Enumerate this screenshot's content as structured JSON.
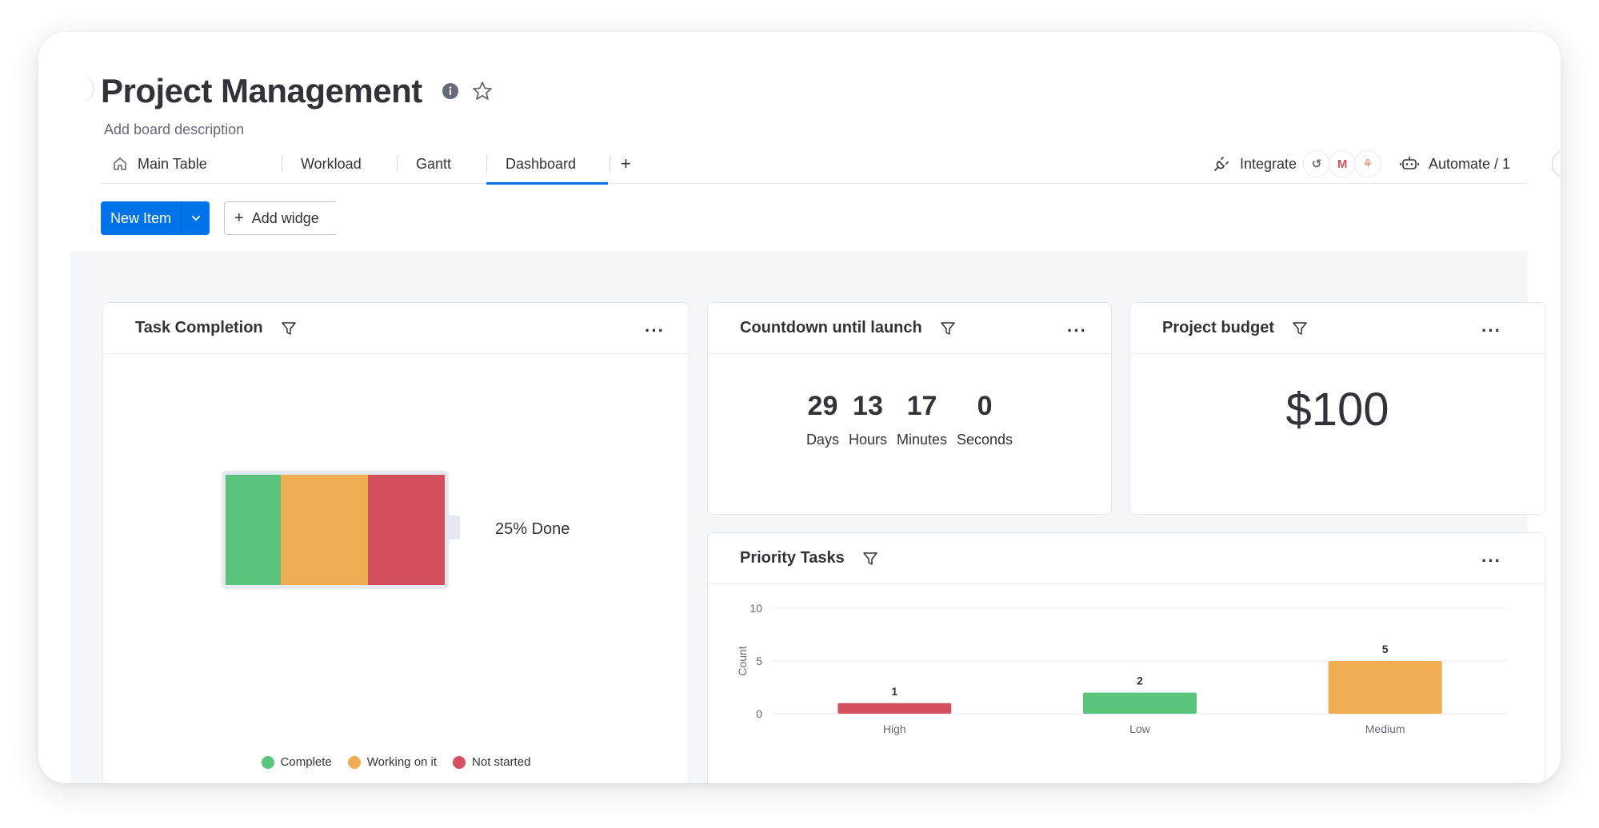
{
  "board": {
    "title": "Project Management",
    "description": "Add board description"
  },
  "tabs": [
    {
      "label": "Main Table",
      "icon": "home-icon"
    },
    {
      "label": "Workload"
    },
    {
      "label": "Gantt"
    },
    {
      "label": "Dashboard",
      "active": true
    },
    {
      "label": "+"
    }
  ],
  "toolbar": {
    "integrate_label": "Integrate",
    "integrations": [
      "webhook-icon",
      "gmail-icon",
      "hubspot-icon"
    ],
    "automate_label": "Automate / 1",
    "new_item_label": "New Item",
    "add_widget_label": "Add widge"
  },
  "widgets": {
    "task_completion": {
      "title": "Task Completion",
      "done_label": "25% Done",
      "segments": [
        {
          "name": "Complete",
          "fraction": 0.25,
          "color": "#5ac47d"
        },
        {
          "name": "Working on it",
          "fraction": 0.4,
          "color": "#f0ad52"
        },
        {
          "name": "Not started",
          "fraction": 0.35,
          "color": "#d5505e"
        }
      ],
      "legend": [
        {
          "label": "Complete",
          "color": "#5ac47d"
        },
        {
          "label": "Working on it",
          "color": "#f0ad52"
        },
        {
          "label": "Not started",
          "color": "#d5505e"
        }
      ]
    },
    "countdown": {
      "title": "Countdown until launch",
      "units": [
        {
          "value": "29",
          "label": "Days"
        },
        {
          "value": "13",
          "label": "Hours"
        },
        {
          "value": "17",
          "label": "Minutes"
        },
        {
          "value": "0",
          "label": "Seconds"
        }
      ]
    },
    "budget": {
      "title": "Project budget",
      "value": "$100"
    },
    "priority": {
      "title": "Priority Tasks"
    }
  },
  "chart_data": {
    "type": "bar",
    "categories": [
      "High",
      "Low",
      "Medium"
    ],
    "values": [
      1,
      2,
      5
    ],
    "colors": [
      "#d5505e",
      "#5ac47d",
      "#f0ad52"
    ],
    "ylabel": "Count",
    "yticks": [
      0,
      5,
      10
    ],
    "ylim": [
      0,
      10
    ],
    "grid": true
  },
  "colors": {
    "accent": "#0073ea"
  }
}
